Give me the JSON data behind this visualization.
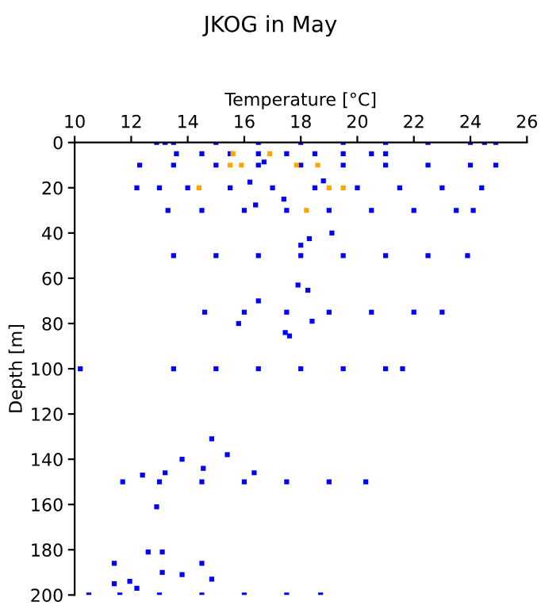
{
  "chart_data": {
    "type": "scatter",
    "title": "JKOG in May",
    "xlabel": "Temperature [°C]",
    "ylabel": "Depth [m]",
    "xlim": [
      10,
      26
    ],
    "xticks": [
      10,
      12,
      14,
      16,
      18,
      20,
      22,
      24,
      26
    ],
    "ylim": [
      200,
      0
    ],
    "yticks": [
      0,
      20,
      40,
      60,
      80,
      100,
      120,
      140,
      160,
      180,
      200
    ],
    "marker": "square",
    "grid": false,
    "legend": false,
    "series": [
      {
        "color": "#0000ff",
        "x": [
          12.9,
          13.2,
          13.5,
          15,
          16.5,
          18,
          19.5,
          21,
          22.5,
          24,
          24.5,
          24.9,
          13.6,
          14.5,
          15.5,
          16.5,
          17.5,
          18.5,
          19.5,
          20.5,
          21.0,
          12.3,
          13.5,
          15,
          16.5,
          18,
          19.5,
          21,
          22.5,
          24,
          24.9,
          12.2,
          13,
          14,
          15.5,
          17,
          18.5,
          20,
          21.5,
          23,
          24.4,
          13.3,
          14.5,
          16,
          17.5,
          19,
          20.5,
          22,
          23.5,
          24.1,
          13.5,
          15,
          16.5,
          18,
          19.5,
          21,
          22.5,
          23.9,
          14.6,
          16,
          17.5,
          19,
          20.5,
          22,
          23.0,
          10.2,
          13.5,
          15,
          16.5,
          18,
          19.5,
          21,
          21.6,
          11.7,
          13,
          14.5,
          16,
          17.5,
          19,
          20.3,
          10.5,
          11.6,
          13,
          14.5,
          16,
          17.5,
          18.7,
          16.7,
          16.2,
          18.8,
          17.4,
          16.4,
          19.1,
          18.3,
          18.0,
          17.9,
          18.25,
          16.5,
          17.45,
          17.6,
          15.8,
          18.4,
          14.85,
          15.4,
          13.8,
          14.55,
          16.35,
          12.4,
          13.2,
          12.9,
          12.6,
          13.1,
          14.5,
          11.4,
          11.4,
          11.95,
          13.1,
          13.8,
          14.85,
          12.2
        ],
        "values": [
          0,
          0,
          0,
          0,
          0,
          0,
          0,
          0,
          0,
          0,
          0,
          0,
          5,
          5,
          5,
          5,
          5,
          5,
          5,
          5,
          5,
          10,
          10,
          10,
          10,
          10,
          10,
          10,
          10,
          10,
          10,
          20,
          20,
          20,
          20,
          20,
          20,
          20,
          20,
          20,
          20,
          30,
          30,
          30,
          30,
          30,
          30,
          30,
          30,
          30,
          50,
          50,
          50,
          50,
          50,
          50,
          50,
          50,
          75,
          75,
          75,
          75,
          75,
          75,
          75,
          100,
          100,
          100,
          100,
          100,
          100,
          100,
          100,
          150,
          150,
          150,
          150,
          150,
          150,
          150,
          200,
          200,
          200,
          200,
          200,
          200,
          200,
          8.6,
          17.5,
          17,
          25,
          27.6,
          40,
          42.5,
          45.4,
          63,
          65.3,
          70,
          84,
          85.5,
          80,
          79,
          131,
          138,
          140,
          144,
          146,
          147,
          146,
          161,
          181,
          181,
          186,
          186,
          195,
          194,
          190,
          191,
          193,
          197
        ]
      },
      {
        "color": "#ffa500",
        "x": [
          15.6,
          16.9,
          15.5,
          15.9,
          17.85,
          18.6,
          14.4,
          19.0,
          19.5,
          18.2
        ],
        "values": [
          5,
          5,
          10,
          10,
          10,
          10,
          20,
          20,
          20,
          30
        ]
      }
    ]
  }
}
